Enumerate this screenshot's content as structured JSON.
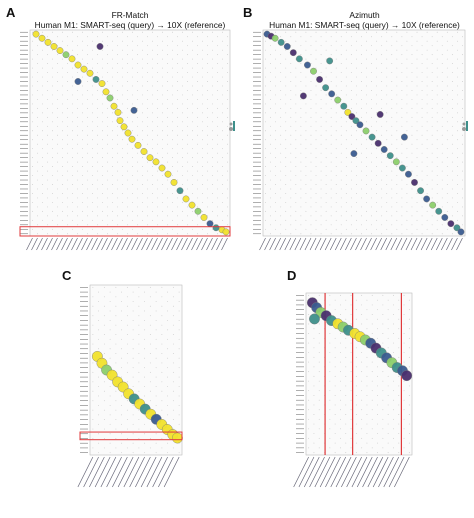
{
  "panels": {
    "A": {
      "letter": "A",
      "method": "FR-Match",
      "subtitle": "Human M1: SMART-seq (query) → 10X (reference)"
    },
    "B": {
      "letter": "B",
      "method": "Azimuth",
      "subtitle": "Human M1: SMART-seq (query) → 10X (reference)"
    },
    "C": {
      "letter": "C"
    },
    "D": {
      "letter": "D"
    }
  },
  "colors": {
    "yellow": "#f1e12c",
    "light_green": "#8ccf6b",
    "teal": "#3e8f8a",
    "blue": "#3a5b8f",
    "purple": "#4a2f6e",
    "highlight_red": "#e0393b",
    "grid": "#c8c8c8"
  },
  "legend_icons": [
    "dot-size-legend-icon",
    "dot-color-legend-icon"
  ],
  "chart_data": [
    {
      "panel": "A",
      "type": "scatter",
      "kind": "dot-matrix",
      "title": "FR-Match",
      "subtitle": "Human M1: SMART-seq (query) → 10X (reference)",
      "x_range": [
        0,
        100
      ],
      "y_range": [
        0,
        100
      ],
      "points": [
        {
          "x": 3,
          "y": 2,
          "c": "yellow"
        },
        {
          "x": 6,
          "y": 4,
          "c": "yellow"
        },
        {
          "x": 9,
          "y": 6,
          "c": "yellow"
        },
        {
          "x": 12,
          "y": 8,
          "c": "yellow"
        },
        {
          "x": 15,
          "y": 10,
          "c": "yellow"
        },
        {
          "x": 18,
          "y": 12,
          "c": "light_green"
        },
        {
          "x": 21,
          "y": 14,
          "c": "yellow"
        },
        {
          "x": 24,
          "y": 17,
          "c": "yellow"
        },
        {
          "x": 27,
          "y": 19,
          "c": "yellow"
        },
        {
          "x": 30,
          "y": 21,
          "c": "yellow"
        },
        {
          "x": 33,
          "y": 24,
          "c": "teal"
        },
        {
          "x": 36,
          "y": 26,
          "c": "yellow"
        },
        {
          "x": 38,
          "y": 30,
          "c": "yellow"
        },
        {
          "x": 40,
          "y": 33,
          "c": "light_green"
        },
        {
          "x": 42,
          "y": 37,
          "c": "yellow"
        },
        {
          "x": 44,
          "y": 40,
          "c": "yellow"
        },
        {
          "x": 45,
          "y": 44,
          "c": "yellow"
        },
        {
          "x": 47,
          "y": 47,
          "c": "yellow"
        },
        {
          "x": 49,
          "y": 50,
          "c": "yellow"
        },
        {
          "x": 51,
          "y": 53,
          "c": "yellow"
        },
        {
          "x": 54,
          "y": 56,
          "c": "yellow"
        },
        {
          "x": 57,
          "y": 59,
          "c": "yellow"
        },
        {
          "x": 60,
          "y": 62,
          "c": "yellow"
        },
        {
          "x": 63,
          "y": 64,
          "c": "yellow"
        },
        {
          "x": 66,
          "y": 67,
          "c": "yellow"
        },
        {
          "x": 69,
          "y": 70,
          "c": "yellow"
        },
        {
          "x": 72,
          "y": 74,
          "c": "yellow"
        },
        {
          "x": 75,
          "y": 78,
          "c": "teal"
        },
        {
          "x": 78,
          "y": 82,
          "c": "yellow"
        },
        {
          "x": 81,
          "y": 85,
          "c": "yellow"
        },
        {
          "x": 84,
          "y": 88,
          "c": "light_green"
        },
        {
          "x": 87,
          "y": 91,
          "c": "yellow"
        },
        {
          "x": 90,
          "y": 94,
          "c": "blue"
        },
        {
          "x": 93,
          "y": 96,
          "c": "teal"
        },
        {
          "x": 96,
          "y": 97,
          "c": "yellow"
        },
        {
          "x": 98,
          "y": 98,
          "c": "yellow"
        },
        {
          "x": 24,
          "y": 25,
          "c": "blue"
        },
        {
          "x": 35,
          "y": 8,
          "c": "purple"
        },
        {
          "x": 52,
          "y": 39,
          "c": "blue"
        }
      ],
      "highlight_rows": [
        [
          95.5,
          100
        ]
      ]
    },
    {
      "panel": "B",
      "type": "scatter",
      "kind": "dot-matrix",
      "title": "Azimuth",
      "subtitle": "Human M1: SMART-seq (query) → 10X (reference)",
      "x_range": [
        0,
        100
      ],
      "y_range": [
        0,
        100
      ],
      "points": [
        {
          "x": 2,
          "y": 2,
          "c": "blue"
        },
        {
          "x": 4,
          "y": 3,
          "c": "purple"
        },
        {
          "x": 6,
          "y": 4,
          "c": "light_green"
        },
        {
          "x": 9,
          "y": 6,
          "c": "teal"
        },
        {
          "x": 12,
          "y": 8,
          "c": "blue"
        },
        {
          "x": 15,
          "y": 11,
          "c": "purple"
        },
        {
          "x": 18,
          "y": 14,
          "c": "teal"
        },
        {
          "x": 22,
          "y": 17,
          "c": "blue"
        },
        {
          "x": 25,
          "y": 20,
          "c": "light_green"
        },
        {
          "x": 28,
          "y": 24,
          "c": "purple"
        },
        {
          "x": 31,
          "y": 28,
          "c": "teal"
        },
        {
          "x": 34,
          "y": 31,
          "c": "blue"
        },
        {
          "x": 37,
          "y": 34,
          "c": "light_green"
        },
        {
          "x": 40,
          "y": 37,
          "c": "teal"
        },
        {
          "x": 42,
          "y": 40,
          "c": "yellow"
        },
        {
          "x": 44,
          "y": 42,
          "c": "purple"
        },
        {
          "x": 46,
          "y": 44,
          "c": "teal"
        },
        {
          "x": 48,
          "y": 46,
          "c": "blue"
        },
        {
          "x": 51,
          "y": 49,
          "c": "light_green"
        },
        {
          "x": 54,
          "y": 52,
          "c": "teal"
        },
        {
          "x": 57,
          "y": 55,
          "c": "purple"
        },
        {
          "x": 60,
          "y": 58,
          "c": "blue"
        },
        {
          "x": 63,
          "y": 61,
          "c": "teal"
        },
        {
          "x": 66,
          "y": 64,
          "c": "light_green"
        },
        {
          "x": 69,
          "y": 67,
          "c": "teal"
        },
        {
          "x": 72,
          "y": 70,
          "c": "blue"
        },
        {
          "x": 75,
          "y": 74,
          "c": "purple"
        },
        {
          "x": 78,
          "y": 78,
          "c": "teal"
        },
        {
          "x": 81,
          "y": 82,
          "c": "blue"
        },
        {
          "x": 84,
          "y": 85,
          "c": "light_green"
        },
        {
          "x": 87,
          "y": 88,
          "c": "teal"
        },
        {
          "x": 90,
          "y": 91,
          "c": "blue"
        },
        {
          "x": 93,
          "y": 94,
          "c": "purple"
        },
        {
          "x": 96,
          "y": 96,
          "c": "teal"
        },
        {
          "x": 98,
          "y": 98,
          "c": "blue"
        },
        {
          "x": 20,
          "y": 32,
          "c": "purple"
        },
        {
          "x": 45,
          "y": 60,
          "c": "blue"
        },
        {
          "x": 58,
          "y": 41,
          "c": "purple"
        },
        {
          "x": 70,
          "y": 52,
          "c": "blue"
        },
        {
          "x": 33,
          "y": 15,
          "c": "teal"
        }
      ],
      "highlight_rows": []
    },
    {
      "panel": "C",
      "type": "scatter",
      "kind": "dot-matrix",
      "x_range": [
        0,
        100
      ],
      "y_range": [
        0,
        100
      ],
      "points": [
        {
          "x": 8,
          "y": 42,
          "c": "yellow"
        },
        {
          "x": 13,
          "y": 46,
          "c": "yellow"
        },
        {
          "x": 18,
          "y": 50,
          "c": "light_green"
        },
        {
          "x": 24,
          "y": 53,
          "c": "yellow"
        },
        {
          "x": 30,
          "y": 57,
          "c": "yellow"
        },
        {
          "x": 36,
          "y": 60,
          "c": "yellow"
        },
        {
          "x": 42,
          "y": 64,
          "c": "yellow"
        },
        {
          "x": 48,
          "y": 67,
          "c": "teal"
        },
        {
          "x": 54,
          "y": 70,
          "c": "yellow"
        },
        {
          "x": 60,
          "y": 73,
          "c": "teal"
        },
        {
          "x": 66,
          "y": 76,
          "c": "yellow"
        },
        {
          "x": 72,
          "y": 79,
          "c": "blue"
        },
        {
          "x": 78,
          "y": 82,
          "c": "yellow"
        },
        {
          "x": 84,
          "y": 85,
          "c": "yellow"
        },
        {
          "x": 90,
          "y": 88,
          "c": "yellow"
        },
        {
          "x": 95,
          "y": 90,
          "c": "yellow"
        }
      ],
      "highlight_rows": [
        [
          86.5,
          91
        ]
      ]
    },
    {
      "panel": "D",
      "type": "scatter",
      "kind": "dot-matrix",
      "x_range": [
        0,
        100
      ],
      "y_range": [
        0,
        100
      ],
      "points": [
        {
          "x": 6,
          "y": 6,
          "c": "purple"
        },
        {
          "x": 10,
          "y": 9,
          "c": "blue"
        },
        {
          "x": 14,
          "y": 12,
          "c": "light_green"
        },
        {
          "x": 19,
          "y": 14,
          "c": "purple"
        },
        {
          "x": 8,
          "y": 16,
          "c": "teal"
        },
        {
          "x": 24,
          "y": 17,
          "c": "teal"
        },
        {
          "x": 30,
          "y": 19,
          "c": "yellow"
        },
        {
          "x": 35,
          "y": 21,
          "c": "light_green"
        },
        {
          "x": 40,
          "y": 23,
          "c": "teal"
        },
        {
          "x": 46,
          "y": 25,
          "c": "yellow"
        },
        {
          "x": 51,
          "y": 27,
          "c": "yellow"
        },
        {
          "x": 56,
          "y": 29,
          "c": "light_green"
        },
        {
          "x": 61,
          "y": 31,
          "c": "blue"
        },
        {
          "x": 66,
          "y": 34,
          "c": "purple"
        },
        {
          "x": 71,
          "y": 37,
          "c": "teal"
        },
        {
          "x": 76,
          "y": 40,
          "c": "blue"
        },
        {
          "x": 81,
          "y": 43,
          "c": "light_green"
        },
        {
          "x": 86,
          "y": 46,
          "c": "teal"
        },
        {
          "x": 91,
          "y": 48,
          "c": "blue"
        },
        {
          "x": 95,
          "y": 51,
          "c": "purple"
        }
      ],
      "highlight_cols": [
        18,
        44,
        90
      ]
    }
  ]
}
